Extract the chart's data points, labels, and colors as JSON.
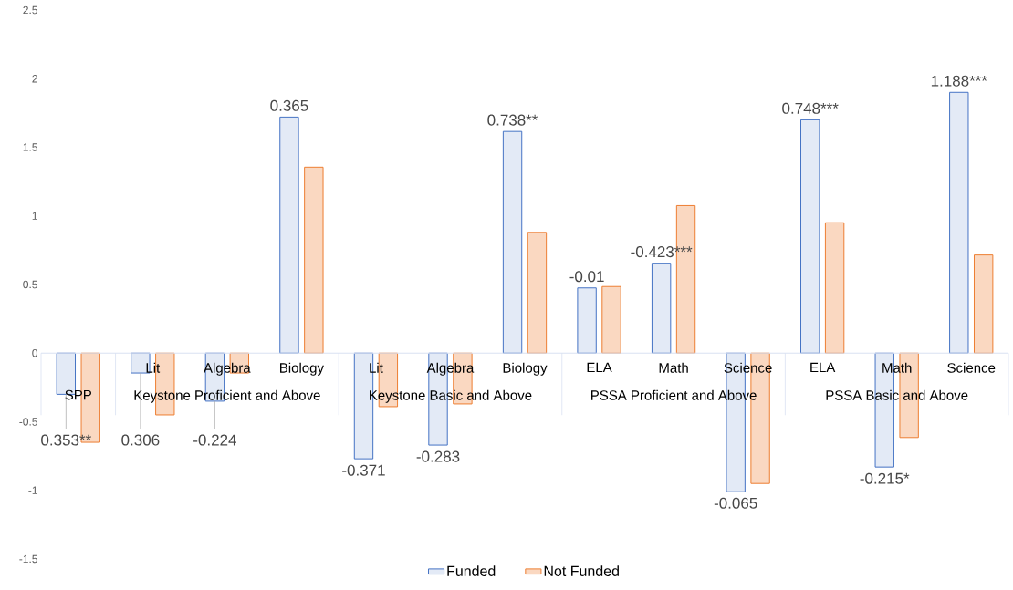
{
  "chart_data": {
    "type": "bar",
    "categories": [
      null,
      "Lit",
      "Algebra",
      "Biology",
      "Lit",
      "Algebra",
      "Biology",
      "ELA",
      "Math",
      "Science",
      "ELA",
      "Math",
      "Science"
    ],
    "series": [
      {
        "name": "Funded",
        "color": "#4472c4",
        "values": [
          -0.3,
          -0.145,
          -0.35,
          1.72,
          -0.77,
          -0.67,
          1.615,
          0.475,
          0.655,
          -1.01,
          1.7,
          -0.83,
          1.9
        ]
      },
      {
        "name": "Not Funded",
        "color": "#ed7d31",
        "values": [
          -0.65,
          -0.45,
          -0.145,
          1.355,
          -0.39,
          -0.37,
          0.88,
          0.485,
          1.075,
          -0.95,
          0.95,
          -0.615,
          0.715
        ]
      }
    ],
    "annotations": [
      "SPP",
      "Keystone Proficient and Above",
      "Keystone Basic and Above",
      "PSSA Proficient and Above",
      "PSSA Basic and Above",
      {
        "text": "0.353**",
        "y": -0.3
      },
      {
        "text": "0.306",
        "y": -0.145
      },
      {
        "text": "-0.224",
        "x": "Algebra",
        "y": -0.35
      },
      "0.365",
      "-0.371",
      "-0.283",
      "0.738**",
      "-0.01",
      "-0.423***",
      "-0.065",
      "0.748***",
      "-0.215*",
      "1.188***"
    ],
    "ylim": [
      -1.5,
      2.5
    ],
    "yticks": [
      -1.5,
      -1,
      -0.5,
      0,
      0.5,
      1,
      1.5,
      2,
      2.5
    ],
    "legend": "bottom"
  }
}
